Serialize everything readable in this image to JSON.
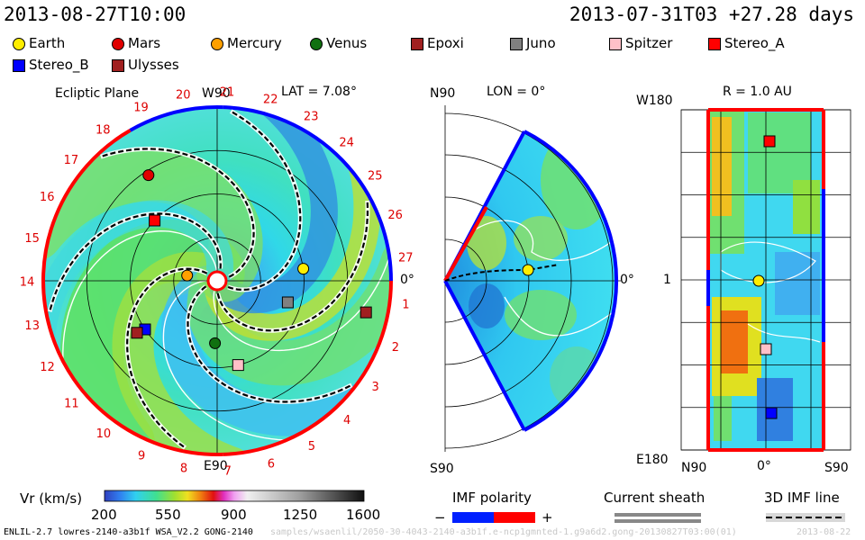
{
  "header": {
    "left_time": "2013-08-27T10:00",
    "right_time": "2013-07-31T03 +27.28 days"
  },
  "legend": [
    {
      "name": "Earth",
      "color": "#ffee00",
      "shape": "circle-icon"
    },
    {
      "name": "Mars",
      "color": "#e00000",
      "shape": "circle-icon"
    },
    {
      "name": "Mercury",
      "color": "#ffa000",
      "shape": "circle-icon"
    },
    {
      "name": "Venus",
      "color": "#107010",
      "shape": "circle-icon"
    },
    {
      "name": "Epoxi",
      "color": "#a02020",
      "shape": "square-icon"
    },
    {
      "name": "Juno",
      "color": "#808080",
      "shape": "square-icon"
    },
    {
      "name": "Spitzer",
      "color": "#ffc0c8",
      "shape": "square-icon"
    },
    {
      "name": "Stereo_A",
      "color": "#ff0000",
      "shape": "square-icon"
    },
    {
      "name": "Stereo_B",
      "color": "#0000ff",
      "shape": "square-icon"
    },
    {
      "name": "Ulysses",
      "color": "#a02020",
      "shape": "square-icon"
    }
  ],
  "chart_data": [
    {
      "type": "heatmap",
      "panel": "ecliptic",
      "title": "Ecliptic Plane",
      "lat_label": "LAT = 7.08°",
      "top_label": "W90",
      "bottom_label": "E90",
      "right_label": "0°",
      "carrington_labels": [
        "1",
        "2",
        "3",
        "4",
        "5",
        "6",
        "7",
        "8",
        "9",
        "10",
        "11",
        "12",
        "13",
        "14",
        "15",
        "16",
        "17",
        "18",
        "19",
        "20",
        "21",
        "22",
        "23",
        "24",
        "25",
        "26",
        "27"
      ],
      "bodies": [
        {
          "name": "Earth",
          "r_au": 1.0,
          "lon_deg": 8
        },
        {
          "name": "Mars",
          "r_au": 1.45,
          "lon_deg": 123
        },
        {
          "name": "Mercury",
          "r_au": 0.35,
          "lon_deg": 170
        },
        {
          "name": "Venus",
          "r_au": 0.72,
          "lon_deg": -92
        },
        {
          "name": "Epoxi",
          "r_au": 1.75,
          "lon_deg": -12
        },
        {
          "name": "Juno",
          "r_au": 0.85,
          "lon_deg": -17
        },
        {
          "name": "Spitzer",
          "r_au": 1.0,
          "lon_deg": -76
        },
        {
          "name": "Stereo_A",
          "r_au": 1.0,
          "lon_deg": 136
        },
        {
          "name": "Stereo_B",
          "r_au": 1.0,
          "lon_deg": -146
        },
        {
          "name": "Ulysses",
          "r_au": 1.1,
          "lon_deg": -147
        }
      ]
    },
    {
      "type": "heatmap",
      "panel": "meridional",
      "title": "LON = 0°",
      "top_label": "N90",
      "bottom_label": "S90",
      "right_label": "0°"
    },
    {
      "type": "heatmap",
      "panel": "r-shell",
      "title": "R = 1.0 AU",
      "top_label": "W180",
      "bottom_label": "E180",
      "mid_label": "1",
      "x_labels": [
        "N90",
        "0°",
        "S90"
      ]
    }
  ],
  "colorbar": {
    "label": "Vr (km/s)",
    "ticks": [
      "200",
      "550",
      "900",
      "1250",
      "1600"
    ],
    "min": 200,
    "max": 1600
  },
  "imf": {
    "label": "IMF polarity",
    "minus": "−",
    "plus": "+"
  },
  "current_sheath": {
    "label": "Current sheath"
  },
  "imf_line": {
    "label": "3D IMF line"
  },
  "footer": {
    "version": "ENLIL-2.7 lowres-2140-a3b1f WSA_V2.2 GONG-2140",
    "path": "samples/wsaenlil/2050-30-4043-2140-a3b1f.e-ncp1gmnted-1.g9a6d2.gong-20130827T03:00(01)",
    "stamp": "2013-08-22"
  }
}
